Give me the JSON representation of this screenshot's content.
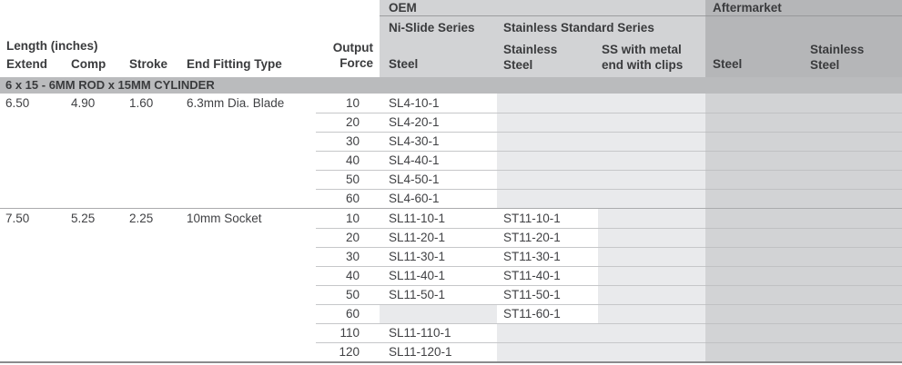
{
  "header": {
    "length_label": "Length (inches)",
    "col_extend": "Extend",
    "col_comp": "Comp",
    "col_stroke": "Stroke",
    "col_fitting": "End Fitting Type",
    "col_output_line1": "Output",
    "col_output_line2": "Force",
    "oem": {
      "title": "OEM",
      "series_ni_slide": "Ni-Slide Series",
      "series_stainless_standard": "Stainless Standard Series",
      "col_steel": "Steel",
      "col_stainless_line1": "Stainless",
      "col_stainless_line2": "Steel",
      "col_ss_clips_line1": "SS with metal",
      "col_ss_clips_line2": "end with clips"
    },
    "aftermarket": {
      "title": "Aftermarket",
      "col_steel": "Steel",
      "col_stainless_line1": "Stainless",
      "col_stainless_line2": "Steel"
    }
  },
  "section_title": "6 x 15 - 6MM ROD x 15MM CYLINDER",
  "groups": [
    {
      "extend": "6.50",
      "comp": "4.90",
      "stroke": "1.60",
      "fitting": "6.3mm Dia. Blade",
      "rows": [
        {
          "force": "10",
          "steel": "SL4-10-1",
          "stainless": "",
          "ss_clips": "",
          "am_steel": "",
          "am_stainless": ""
        },
        {
          "force": "20",
          "steel": "SL4-20-1",
          "stainless": "",
          "ss_clips": "",
          "am_steel": "",
          "am_stainless": ""
        },
        {
          "force": "30",
          "steel": "SL4-30-1",
          "stainless": "",
          "ss_clips": "",
          "am_steel": "",
          "am_stainless": ""
        },
        {
          "force": "40",
          "steel": "SL4-40-1",
          "stainless": "",
          "ss_clips": "",
          "am_steel": "",
          "am_stainless": ""
        },
        {
          "force": "50",
          "steel": "SL4-50-1",
          "stainless": "",
          "ss_clips": "",
          "am_steel": "",
          "am_stainless": ""
        },
        {
          "force": "60",
          "steel": "SL4-60-1",
          "stainless": "",
          "ss_clips": "",
          "am_steel": "",
          "am_stainless": ""
        }
      ]
    },
    {
      "extend": "7.50",
      "comp": "5.25",
      "stroke": "2.25",
      "fitting": "10mm Socket",
      "rows": [
        {
          "force": "10",
          "steel": "SL11-10-1",
          "stainless": "ST11-10-1",
          "ss_clips": "",
          "am_steel": "",
          "am_stainless": ""
        },
        {
          "force": "20",
          "steel": "SL11-20-1",
          "stainless": "ST11-20-1",
          "ss_clips": "",
          "am_steel": "",
          "am_stainless": ""
        },
        {
          "force": "30",
          "steel": "SL11-30-1",
          "stainless": "ST11-30-1",
          "ss_clips": "",
          "am_steel": "",
          "am_stainless": ""
        },
        {
          "force": "40",
          "steel": "SL11-40-1",
          "stainless": "ST11-40-1",
          "ss_clips": "",
          "am_steel": "",
          "am_stainless": ""
        },
        {
          "force": "50",
          "steel": "SL11-50-1",
          "stainless": "ST11-50-1",
          "ss_clips": "",
          "am_steel": "",
          "am_stainless": ""
        },
        {
          "force": "60",
          "steel": "",
          "stainless": "ST11-60-1",
          "ss_clips": "",
          "am_steel": "",
          "am_stainless": ""
        },
        {
          "force": "110",
          "steel": "SL11-110-1",
          "stainless": "",
          "ss_clips": "",
          "am_steel": "",
          "am_stainless": ""
        },
        {
          "force": "120",
          "steel": "SL11-120-1",
          "stainless": "",
          "ss_clips": "",
          "am_steel": "",
          "am_stainless": ""
        }
      ]
    }
  ],
  "colors": {
    "oem_header_bg": "#d2d3d5",
    "aftermarket_header_bg": "#b5b6b8",
    "section_bar_bg": "#babbbd",
    "empty_cell_bg": "#e9eaec",
    "aftermarket_cell_bg": "#d2d3d5",
    "row_separator": "#c6c7c9",
    "group_divider": "#aaabad",
    "bottom_border": "#8a8b8d",
    "text": "#3a3b3d"
  }
}
